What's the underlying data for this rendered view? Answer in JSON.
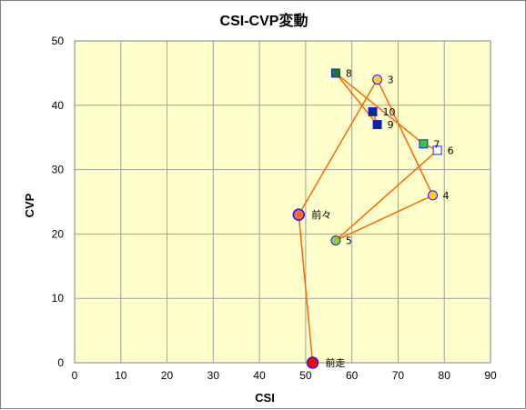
{
  "chart_data": {
    "type": "scatter",
    "title": "CSI-CVP変動",
    "xlabel": "CSI",
    "ylabel": "CVP",
    "xlim": [
      0,
      90
    ],
    "ylim": [
      0,
      50
    ],
    "xticks": [
      "0",
      "10",
      "20",
      "30",
      "40",
      "50",
      "60",
      "70",
      "80",
      "90"
    ],
    "yticks": [
      "0",
      "10",
      "20",
      "30",
      "40",
      "50"
    ],
    "grid": true,
    "colors": {
      "plot_bg": "#ffffcc",
      "grid": "#a0a0a0",
      "line": "#ff6600",
      "marker_stroke": "#1a1aff"
    },
    "points": [
      {
        "label": "前走",
        "x": 51.5,
        "y": 0,
        "shape": "circle",
        "fill": "#ff0000"
      },
      {
        "label": "前々",
        "x": 48.5,
        "y": 23,
        "shape": "circle",
        "fill": "#ff6633"
      },
      {
        "label": "3",
        "x": 65.5,
        "y": 44,
        "shape": "circle",
        "fill": "#ffcc33"
      },
      {
        "label": "4",
        "x": 77.5,
        "y": 26,
        "shape": "circle",
        "fill": "#ffcc33"
      },
      {
        "label": "5",
        "x": 56.5,
        "y": 19,
        "shape": "circle",
        "fill": "#99cc33"
      },
      {
        "label": "6",
        "x": 78.5,
        "y": 33,
        "shape": "square",
        "fill": "#ffffff"
      },
      {
        "label": "7",
        "x": 75.5,
        "y": 34,
        "shape": "square",
        "fill": "#33cc33"
      },
      {
        "label": "8",
        "x": 56.5,
        "y": 45,
        "shape": "square",
        "fill": "#1e7a1e"
      },
      {
        "label": "9",
        "x": 65.5,
        "y": 37,
        "shape": "square",
        "fill": "#0a2a8a"
      },
      {
        "label": "10",
        "x": 64.5,
        "y": 39,
        "shape": "square",
        "fill": "#0a2a8a"
      }
    ]
  }
}
